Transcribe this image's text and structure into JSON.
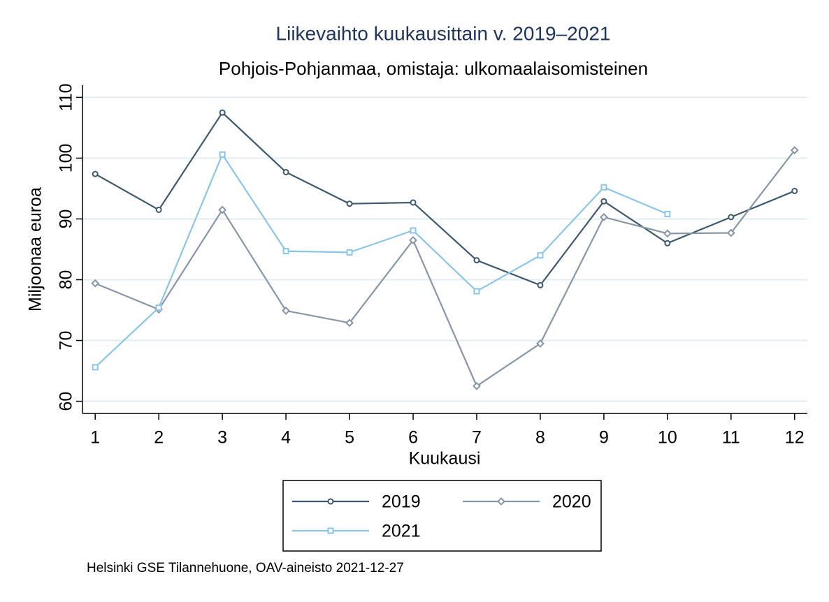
{
  "chart_data": {
    "type": "line",
    "title": "Liikevaihto kuukausittain v. 2019–2021",
    "subtitle": "Pohjois-Pohjanmaa, omistaja: ulkomaalaisomisteinen",
    "x_label": "Kuukausi",
    "y_label": "Miljoonaa euroa",
    "note": "Helsinki GSE Tilannehuone, OAV-aineisto 2021-12-27",
    "x": [
      1,
      2,
      3,
      4,
      5,
      6,
      7,
      8,
      9,
      10,
      11,
      12
    ],
    "series": [
      {
        "name": "2019",
        "color": "#3f596c",
        "marker": "circle",
        "values": [
          97.4,
          91.5,
          107.5,
          97.7,
          92.5,
          92.7,
          83.2,
          79.1,
          92.9,
          86.0,
          90.3,
          94.6
        ]
      },
      {
        "name": "2020",
        "color": "#8996a6",
        "marker": "diamond",
        "values": [
          79.4,
          75.1,
          91.5,
          74.9,
          72.9,
          86.5,
          62.5,
          69.5,
          90.3,
          87.6,
          87.7,
          101.3
        ]
      },
      {
        "name": "2021",
        "color": "#8ec5e4",
        "marker": "square",
        "values": [
          65.6,
          75.4,
          100.6,
          84.7,
          84.5,
          88.1,
          78.1,
          84.0,
          95.2,
          90.8,
          null,
          null
        ]
      }
    ],
    "xlim": [
      0.8,
      12.2
    ],
    "xticks": [
      1,
      2,
      3,
      4,
      5,
      6,
      7,
      8,
      9,
      10,
      11,
      12
    ],
    "ylim": [
      58,
      112
    ],
    "yticks": [
      60,
      70,
      80,
      90,
      100,
      110
    ],
    "grid": true
  }
}
